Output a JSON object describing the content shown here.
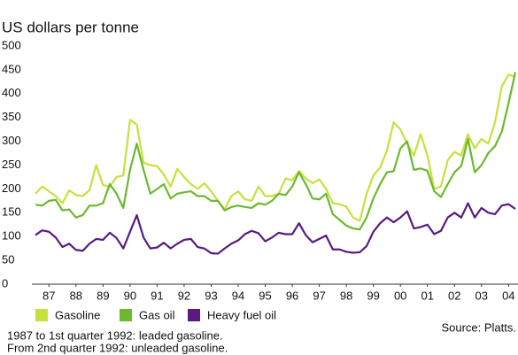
{
  "chart_data": {
    "type": "line",
    "title": "US dollars per tonne",
    "x": [
      1987,
      1987.25,
      1987.5,
      1987.75,
      1988,
      1988.25,
      1988.5,
      1988.75,
      1989,
      1989.25,
      1989.5,
      1989.75,
      1990,
      1990.25,
      1990.5,
      1990.75,
      1991,
      1991.25,
      1991.5,
      1991.75,
      1992,
      1992.25,
      1992.5,
      1992.75,
      1993,
      1993.25,
      1993.5,
      1993.75,
      1994,
      1994.25,
      1994.5,
      1994.75,
      1995,
      1995.25,
      1995.5,
      1995.75,
      1996,
      1996.25,
      1996.5,
      1996.75,
      1997,
      1997.25,
      1997.5,
      1997.75,
      1998,
      1998.25,
      1998.5,
      1998.75,
      1999,
      1999.25,
      1999.5,
      1999.75,
      2000,
      2000.25,
      2000.5,
      2000.75,
      2001,
      2001.25,
      2001.5,
      2001.75,
      2002,
      2002.25,
      2002.5,
      2002.75,
      2003,
      2003.25,
      2003.5,
      2003.75,
      2004,
      2004.25,
      2004.5,
      2004.75
    ],
    "series": [
      {
        "name": "Gasoline",
        "color": "#c8e03c",
        "values": [
          190,
          205,
          195,
          185,
          170,
          197,
          187,
          185,
          197,
          250,
          208,
          205,
          225,
          228,
          345,
          335,
          255,
          250,
          248,
          230,
          205,
          242,
          225,
          210,
          200,
          212,
          195,
          175,
          157,
          185,
          195,
          178,
          175,
          205,
          185,
          185,
          190,
          222,
          218,
          238,
          222,
          212,
          220,
          200,
          170,
          168,
          163,
          140,
          133,
          190,
          228,
          245,
          280,
          340,
          325,
          295,
          270,
          315,
          270,
          200,
          205,
          260,
          278,
          270,
          315,
          285,
          305,
          295,
          340,
          415,
          440,
          435
        ]
      },
      {
        "name": "Gas oil",
        "color": "#6ab92f",
        "values": [
          167,
          165,
          175,
          177,
          155,
          157,
          140,
          145,
          165,
          165,
          170,
          210,
          190,
          160,
          240,
          295,
          240,
          190,
          200,
          210,
          180,
          190,
          193,
          195,
          185,
          185,
          175,
          175,
          155,
          162,
          165,
          162,
          160,
          170,
          167,
          175,
          190,
          187,
          205,
          235,
          210,
          180,
          178,
          190,
          147,
          135,
          123,
          117,
          115,
          140,
          180,
          210,
          235,
          237,
          285,
          300,
          240,
          243,
          238,
          195,
          183,
          210,
          235,
          248,
          305,
          235,
          250,
          275,
          290,
          320,
          380,
          445
        ]
      },
      {
        "name": "Heavy fuel oil",
        "color": "#5a1a82",
        "values": [
          103,
          113,
          110,
          98,
          78,
          85,
          72,
          70,
          85,
          95,
          93,
          108,
          97,
          75,
          110,
          145,
          98,
          75,
          77,
          87,
          75,
          85,
          93,
          95,
          78,
          75,
          65,
          64,
          75,
          85,
          92,
          105,
          112,
          107,
          90,
          98,
          108,
          105,
          105,
          128,
          103,
          88,
          95,
          102,
          73,
          73,
          68,
          66,
          67,
          80,
          110,
          128,
          140,
          130,
          140,
          153,
          117,
          120,
          125,
          105,
          112,
          140,
          150,
          140,
          170,
          140,
          160,
          150,
          147,
          165,
          168,
          158
        ]
      }
    ],
    "xlim": [
      1987,
      2004.85
    ],
    "xticks": [
      {
        "value": 1987.5,
        "label": "87"
      },
      {
        "value": 1988.5,
        "label": "88"
      },
      {
        "value": 1989.5,
        "label": "89"
      },
      {
        "value": 1990.5,
        "label": "90"
      },
      {
        "value": 1991.5,
        "label": "91"
      },
      {
        "value": 1992.5,
        "label": "92"
      },
      {
        "value": 1993.5,
        "label": "93"
      },
      {
        "value": 1994.5,
        "label": "94"
      },
      {
        "value": 1995.5,
        "label": "95"
      },
      {
        "value": 1996.5,
        "label": "96"
      },
      {
        "value": 1997.5,
        "label": "97"
      },
      {
        "value": 1998.5,
        "label": "98"
      },
      {
        "value": 1999.5,
        "label": "99"
      },
      {
        "value": 2000.5,
        "label": "00"
      },
      {
        "value": 2001.5,
        "label": "01"
      },
      {
        "value": 2002.5,
        "label": "02"
      },
      {
        "value": 2003.5,
        "label": "03"
      },
      {
        "value": 2004.5,
        "label": "04"
      }
    ],
    "ylim": [
      0,
      500
    ],
    "yticks": [
      0,
      50,
      100,
      150,
      200,
      250,
      300,
      350,
      400,
      450,
      500
    ],
    "source": "Source: Platts.",
    "notes": [
      "1987 to 1st quarter 1992: leaded gasoline.",
      "From 2nd quarter 1992: unleaded gasoline."
    ]
  }
}
